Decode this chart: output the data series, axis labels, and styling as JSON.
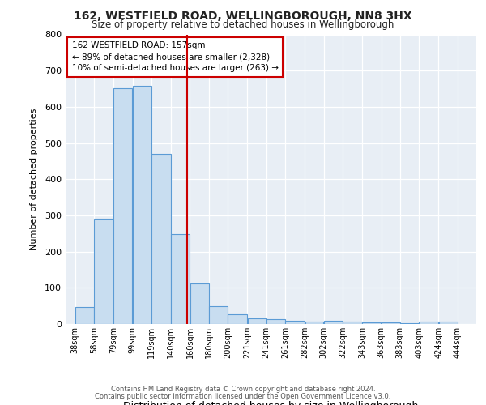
{
  "title1": "162, WESTFIELD ROAD, WELLINGBOROUGH, NN8 3HX",
  "title2": "Size of property relative to detached houses in Wellingborough",
  "xlabel": "Distribution of detached houses by size in Wellingborough",
  "ylabel": "Number of detached properties",
  "footnote1": "Contains HM Land Registry data © Crown copyright and database right 2024.",
  "footnote2": "Contains public sector information licensed under the Open Government Licence v3.0.",
  "annotation_line1": "162 WESTFIELD ROAD: 157sqm",
  "annotation_line2": "← 89% of detached houses are smaller (2,328)",
  "annotation_line3": "10% of semi-detached houses are larger (263) →",
  "bar_left_edges": [
    38,
    58,
    79,
    99,
    119,
    140,
    160,
    180,
    200,
    221,
    241,
    261,
    282,
    302,
    322,
    343,
    363,
    383,
    403,
    424
  ],
  "bar_heights": [
    47,
    292,
    652,
    658,
    471,
    248,
    113,
    50,
    27,
    16,
    14,
    8,
    7,
    8,
    6,
    5,
    4,
    2,
    6,
    7
  ],
  "bar_widths": [
    20,
    21,
    20,
    20,
    21,
    20,
    20,
    20,
    21,
    20,
    20,
    21,
    20,
    20,
    21,
    20,
    20,
    20,
    21,
    20
  ],
  "bar_color": "#c8ddf0",
  "bar_edge_color": "#5b9bd5",
  "red_line_x": 157,
  "ylim": [
    0,
    800
  ],
  "yticks": [
    0,
    100,
    200,
    300,
    400,
    500,
    600,
    700,
    800
  ],
  "xtick_labels": [
    "38sqm",
    "58sqm",
    "79sqm",
    "99sqm",
    "119sqm",
    "140sqm",
    "160sqm",
    "180sqm",
    "200sqm",
    "221sqm",
    "241sqm",
    "261sqm",
    "282sqm",
    "302sqm",
    "322sqm",
    "343sqm",
    "363sqm",
    "383sqm",
    "403sqm",
    "424sqm",
    "444sqm"
  ],
  "xtick_positions": [
    38,
    58,
    79,
    99,
    119,
    140,
    160,
    180,
    200,
    221,
    241,
    261,
    282,
    302,
    322,
    343,
    363,
    383,
    403,
    424,
    444
  ],
  "bg_color": "#e8eef5",
  "grid_color": "#ffffff",
  "fig_bg": "#ffffff"
}
